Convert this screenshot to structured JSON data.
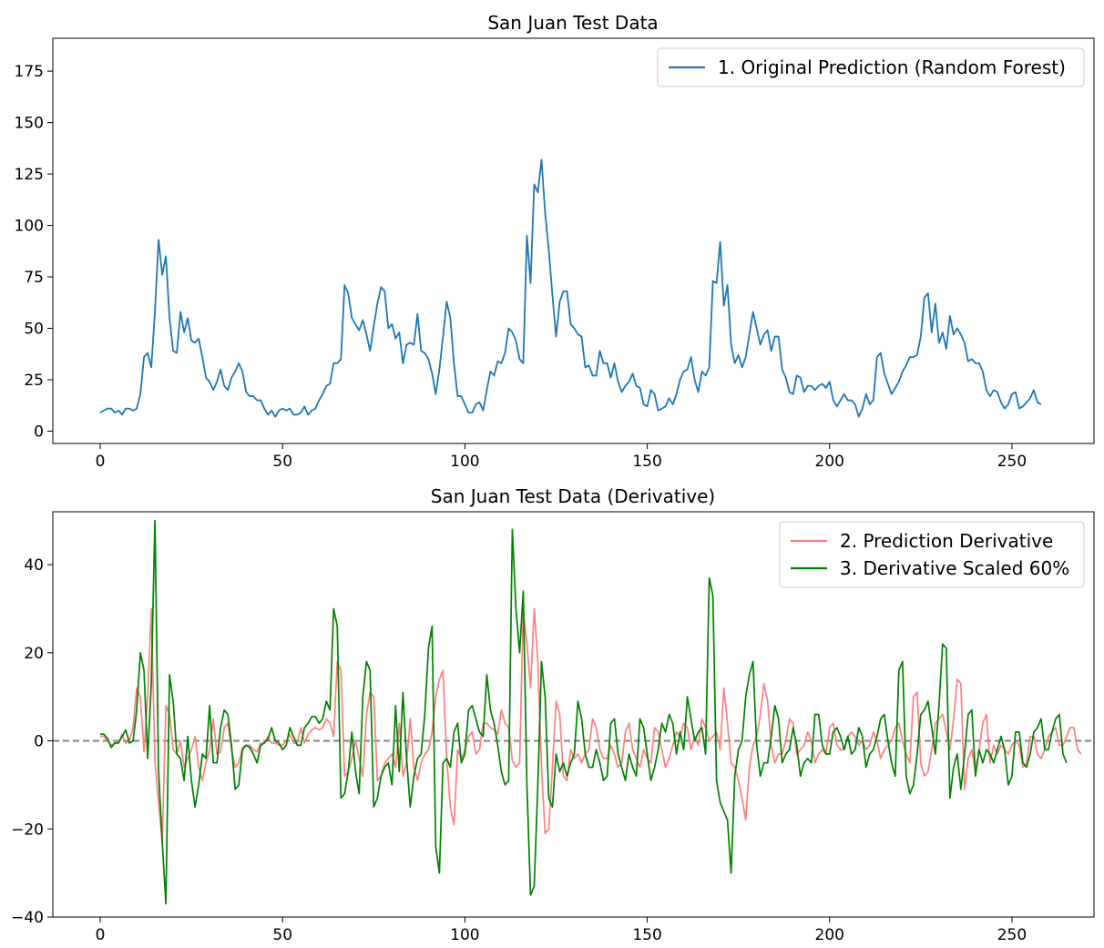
{
  "chart_data": [
    {
      "type": "line",
      "title": "San Juan Test Data",
      "xlabel": "",
      "ylabel": "",
      "xlim": [
        -13,
        272.5
      ],
      "ylim": [
        -6,
        191
      ],
      "xticks": [
        0,
        50,
        100,
        150,
        200,
        250
      ],
      "yticks": [
        0,
        25,
        50,
        75,
        100,
        125,
        150,
        175
      ],
      "grid": false,
      "legend_position": "top-right",
      "series": [
        {
          "name": "1. Original Prediction (Random Forest)",
          "color": "#1f77b4",
          "x_start": 0,
          "values": [
            9,
            10,
            11,
            11,
            9,
            10,
            8,
            11,
            11,
            10,
            11,
            18,
            36,
            38,
            31,
            58,
            93,
            76,
            85,
            55,
            39,
            38,
            58,
            48,
            55,
            44,
            43,
            45,
            36,
            26,
            24,
            20,
            24,
            30,
            22,
            20,
            26,
            29,
            33,
            29,
            19,
            17,
            17,
            15,
            15,
            11,
            8,
            10,
            7,
            10,
            11,
            10,
            11,
            8,
            8,
            9,
            12,
            8,
            10,
            11,
            15,
            18,
            22,
            23,
            33,
            33,
            35,
            71,
            67,
            55,
            52,
            49,
            54,
            47,
            39,
            51,
            62,
            70,
            68,
            50,
            52,
            45,
            48,
            33,
            42,
            43,
            42,
            57,
            39,
            38,
            35,
            28,
            18,
            30,
            46,
            63,
            55,
            33,
            17,
            17,
            13,
            9,
            9,
            13,
            14,
            10,
            20,
            29,
            27,
            34,
            33,
            38,
            50,
            48,
            44,
            35,
            33,
            95,
            72,
            120,
            116,
            132,
            106,
            88,
            66,
            46,
            63,
            68,
            68,
            52,
            50,
            47,
            46,
            31,
            32,
            27,
            27,
            39,
            33,
            33,
            26,
            33,
            24,
            19,
            22,
            24,
            28,
            22,
            21,
            13,
            12,
            20,
            18,
            10,
            11,
            12,
            16,
            13,
            18,
            25,
            29,
            30,
            36,
            25,
            19,
            29,
            27,
            31,
            73,
            72,
            92,
            61,
            71,
            42,
            33,
            37,
            31,
            36,
            47,
            58,
            50,
            42,
            47,
            49,
            39,
            46,
            46,
            30,
            26,
            19,
            18,
            27,
            26,
            19,
            22,
            22,
            20,
            22,
            23,
            21,
            24,
            15,
            12,
            15,
            18,
            15,
            15,
            13,
            7,
            11,
            18,
            13,
            15,
            36,
            38,
            28,
            23,
            18,
            21,
            24,
            29,
            32,
            36,
            36,
            37,
            46,
            65,
            67,
            48,
            62,
            43,
            48,
            40,
            56,
            47,
            50,
            47,
            43,
            34,
            35,
            33,
            33,
            29,
            20,
            17,
            20,
            19,
            14,
            11,
            13,
            18,
            19,
            11,
            12,
            14,
            16,
            20,
            14,
            13
          ]
        }
      ]
    },
    {
      "type": "line",
      "title": "San Juan Test Data (Derivative)",
      "xlabel": "",
      "ylabel": "",
      "xlim": [
        -13,
        272.5
      ],
      "ylim": [
        -40,
        52
      ],
      "xticks": [
        0,
        50,
        100,
        150,
        200,
        250
      ],
      "yticks": [
        -40,
        -20,
        0,
        20,
        40
      ],
      "grid": false,
      "legend_position": "top-right",
      "reference_line": {
        "y": 0,
        "style": "dashed",
        "color": "#808080"
      },
      "series": [
        {
          "name": "2. Prediction Derivative",
          "color": "#ff8080",
          "x_start": 0,
          "values": [
            1,
            1,
            0,
            -1,
            -0.5,
            -0.5,
            1.5,
            -0.5,
            0,
            3,
            12,
            10,
            -2.5,
            10,
            30,
            -4.5,
            -14,
            -23,
            8,
            6,
            -2,
            -3,
            0,
            -6,
            -4,
            -2,
            1,
            -6,
            -9,
            -5,
            -2,
            5,
            -3,
            -2.5,
            3,
            4,
            -2,
            -6,
            -5,
            -1.5,
            -1,
            -1,
            -2,
            -2.5,
            -0.5,
            -0.5,
            1,
            -0.5,
            -0.5,
            -1,
            -1,
            0,
            1.5,
            -0.5,
            -0.5,
            3,
            -0.5,
            1.5,
            2.5,
            3,
            2.5,
            3,
            5,
            4,
            1,
            18,
            16,
            -8,
            -7,
            -4,
            0,
            -4,
            -8,
            6,
            11,
            10,
            -9,
            -8,
            -5,
            -4,
            -3,
            -6,
            4,
            -8,
            -5,
            5,
            -6,
            -9,
            -5,
            -3,
            -2,
            2,
            10,
            14,
            16,
            -4,
            -15,
            -19,
            -2,
            -4,
            -2,
            1,
            2,
            -3,
            -2,
            4,
            4,
            3,
            2.5,
            1.5,
            7,
            4,
            3,
            -4.5,
            -6,
            -5,
            30,
            22,
            12,
            30,
            18,
            -6,
            -21,
            -20,
            -6,
            9,
            6,
            -8,
            -9,
            -2,
            -4,
            -3,
            -5,
            -3,
            -2,
            5,
            3,
            -2,
            -4,
            -4,
            -1,
            -3,
            -6,
            -5,
            2,
            4,
            -2,
            -4,
            -6,
            -2,
            -4,
            -5,
            3,
            2,
            -2,
            -6,
            -4,
            -1,
            2,
            1,
            4,
            3,
            -2,
            1,
            -1,
            5,
            3,
            0,
            1,
            2,
            -2,
            12,
            4,
            -5,
            -6,
            -9,
            -13,
            -18,
            -6,
            -1,
            1,
            6,
            13,
            9,
            -1,
            -5,
            -3,
            -3,
            0,
            5,
            4,
            -3,
            -2,
            -1,
            2,
            0,
            -5,
            -3,
            -2,
            -3,
            3,
            4,
            -1,
            -2,
            -2,
            1,
            2,
            1,
            -1,
            0,
            -2,
            -1,
            2,
            0,
            -4,
            -2,
            -1,
            0,
            3,
            4,
            0,
            -3,
            -5,
            10,
            11,
            -5,
            -8,
            -7,
            -2,
            4,
            5,
            6,
            2,
            -2,
            5,
            14,
            13,
            -11,
            -4,
            -2,
            -7,
            -2,
            4,
            6,
            -5,
            -1,
            -3,
            -1,
            -2,
            -3,
            -1,
            0,
            -1,
            -6,
            -5,
            1,
            1,
            -3,
            -4,
            -2,
            1,
            2,
            3,
            -1,
            -1,
            1,
            3,
            3,
            -2,
            -3
          ]
        },
        {
          "name": "3. Derivative Scaled 60%",
          "color": "#008000",
          "x_start": 0,
          "values": [
            1.5,
            1.5,
            0.5,
            -1.5,
            -0.5,
            -0.5,
            1,
            2.5,
            -0.5,
            0,
            7,
            20,
            16,
            -4,
            13,
            50,
            -7,
            -23,
            -37,
            15,
            9,
            -3,
            -4,
            -9,
            1,
            -9,
            -15,
            -10,
            -3,
            -4,
            8,
            -5,
            -5,
            3,
            7,
            6,
            -1,
            -11,
            -10,
            -2,
            -1,
            -1.5,
            -3,
            -5,
            -1,
            -0.5,
            0.5,
            3,
            0,
            -0.5,
            -2,
            -1,
            3,
            1,
            -1,
            -1,
            3,
            4,
            5.5,
            5.5,
            4,
            5,
            9,
            7,
            30,
            26,
            -13,
            -12,
            -7,
            2,
            -7,
            -12,
            10,
            18,
            16,
            -15,
            -13,
            -8,
            -6,
            -5,
            -10,
            8,
            -7,
            11,
            -4,
            -15,
            -8,
            -4,
            -3,
            6,
            21,
            26,
            -24,
            -30,
            -5,
            -4,
            -6,
            2,
            4,
            -5,
            -3,
            7,
            8,
            5,
            2,
            1,
            15,
            7,
            4,
            -1,
            -7,
            -10,
            -9,
            48,
            30,
            20,
            34,
            -10,
            -35,
            -33,
            -10,
            18,
            10,
            -13,
            -15,
            -3,
            -7,
            -5,
            -8,
            -5,
            -3,
            9,
            5,
            -3,
            -6,
            -6,
            -2,
            -5,
            -9,
            -8,
            4,
            5,
            -3,
            -6,
            -9,
            -3,
            -6,
            -8,
            5,
            3,
            -3,
            -9,
            -6,
            -2,
            4,
            2,
            6,
            4,
            -3,
            2,
            -2,
            10,
            5,
            0,
            2,
            3,
            -3,
            37,
            33,
            -9,
            -14,
            -16,
            -18,
            -30,
            -8,
            -2,
            0,
            10,
            15,
            18,
            -1,
            -8,
            -5,
            -5,
            1,
            8,
            5,
            -5,
            -3,
            -2,
            3,
            -1,
            -8,
            -5,
            -4,
            -5,
            6,
            6,
            -1,
            -3,
            -3,
            2,
            3,
            1,
            -2,
            1,
            -3,
            -2,
            3,
            1,
            -6,
            -3,
            -2,
            1,
            5,
            6,
            0,
            -5,
            -8,
            16,
            18,
            -8,
            -12,
            -10,
            -3,
            6,
            7,
            9,
            3,
            -3,
            8,
            22,
            21,
            -13,
            -6,
            -3,
            -11,
            -3,
            6,
            7,
            -8,
            -2,
            -5,
            -2,
            -3,
            -5,
            -2,
            1,
            -2,
            -10,
            -8,
            2,
            2,
            -5,
            -6,
            -3,
            2,
            3,
            5,
            -2,
            -2,
            2,
            5,
            6,
            -3,
            -5
          ]
        }
      ]
    }
  ]
}
